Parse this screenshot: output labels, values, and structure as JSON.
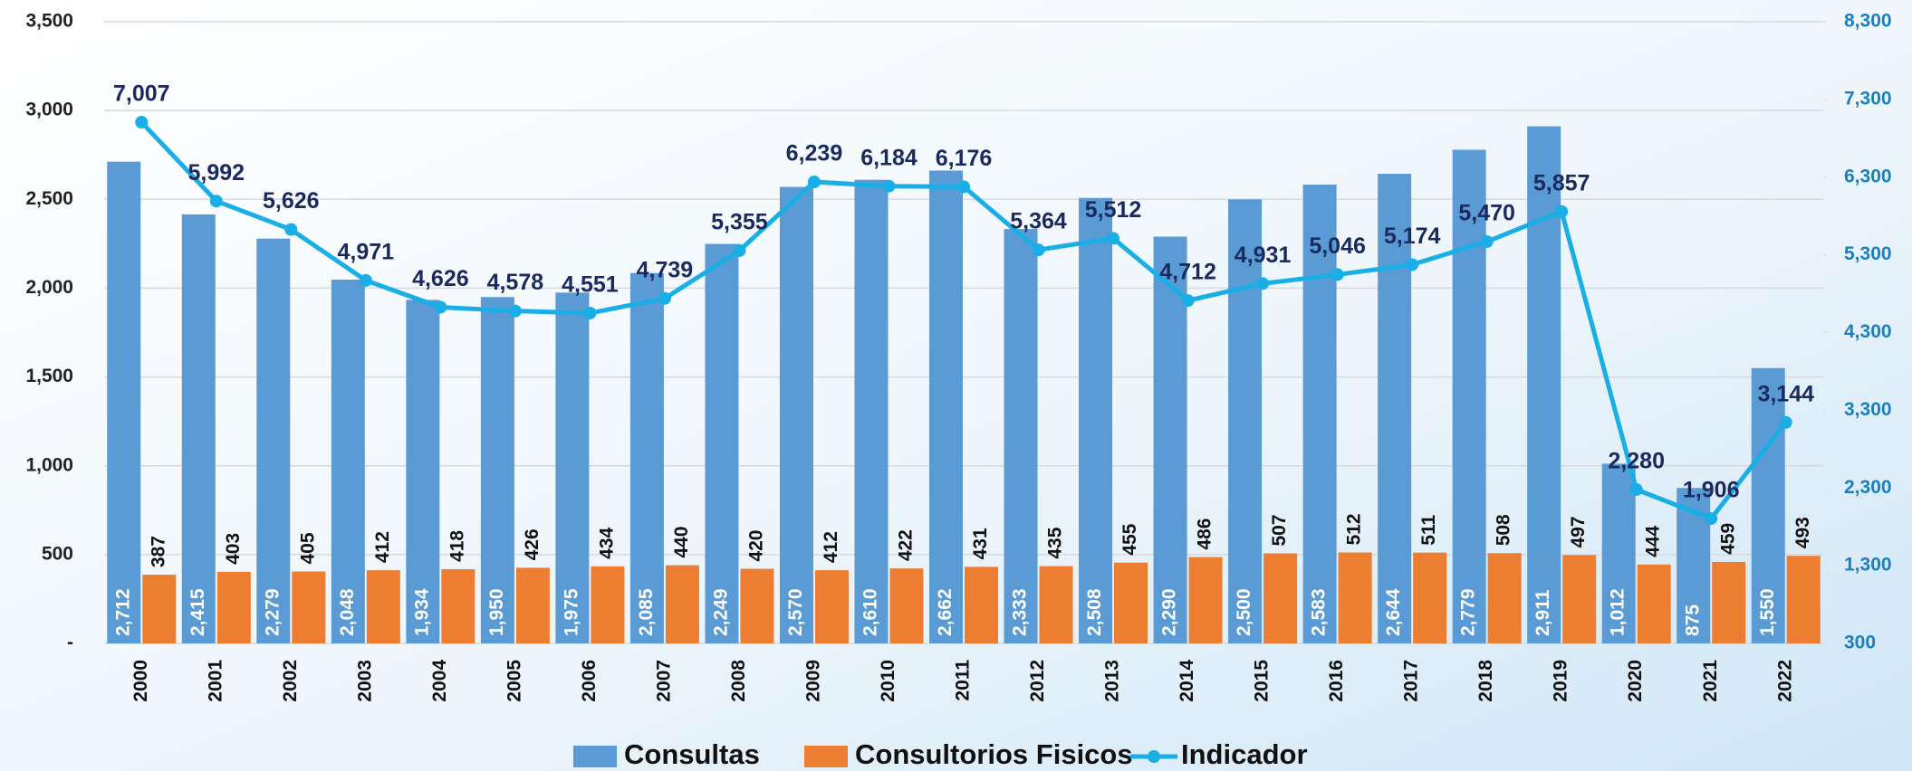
{
  "chart_data": {
    "type": "bar_line",
    "categories": [
      "2000",
      "2001",
      "2002",
      "2003",
      "2004",
      "2005",
      "2006",
      "2007",
      "2008",
      "2009",
      "2010",
      "2011",
      "2012",
      "2013",
      "2014",
      "2015",
      "2016",
      "2017",
      "2018",
      "2019",
      "2020",
      "2021",
      "2022"
    ],
    "series": [
      {
        "name": "Consultas",
        "color": "#5b9bd5",
        "type": "bar",
        "values": [
          2712,
          2415,
          2279,
          2048,
          1934,
          1950,
          1975,
          2085,
          2249,
          2570,
          2610,
          2662,
          2333,
          2508,
          2290,
          2500,
          2583,
          2644,
          2779,
          2911,
          1012,
          875,
          1550
        ],
        "value_labels": [
          "2,712",
          "2,415",
          "2,279",
          "2,048",
          "1,934",
          "1,950",
          "1,975",
          "2,085",
          "2,249",
          "2,570",
          "2,610",
          "2,662",
          "2,333",
          "2,508",
          "2,290",
          "2,500",
          "2,583",
          "2,644",
          "2,779",
          "2,911",
          "1,012",
          "875",
          "1,550"
        ]
      },
      {
        "name": "Consultorios Fisicos",
        "color": "#ed7d31",
        "type": "bar",
        "values": [
          387,
          403,
          405,
          412,
          418,
          426,
          434,
          440,
          420,
          412,
          422,
          431,
          435,
          455,
          486,
          507,
          512,
          511,
          508,
          497,
          444,
          459,
          493
        ]
      },
      {
        "name": "Indicador",
        "color": "#1aaee6",
        "type": "line",
        "axis": "y2",
        "values": [
          7007,
          5992,
          5626,
          4971,
          4626,
          4578,
          4551,
          4739,
          5355,
          6239,
          6184,
          6176,
          5364,
          5512,
          4712,
          4931,
          5046,
          5174,
          5470,
          5857,
          2280,
          1906,
          3144
        ],
        "value_labels": [
          "7,007",
          "5,992",
          "5,626",
          "4,971",
          "4,626",
          "4,578",
          "4,551",
          "4,739",
          "5,355",
          "6,239",
          "6,184",
          "6,176",
          "5,364",
          "5,512",
          "4,712",
          "4,931",
          "5,046",
          "5,174",
          "5,470",
          "5,857",
          "2,280",
          "1,906",
          "3,144"
        ]
      }
    ],
    "ylim": [
      0,
      3500
    ],
    "yticks": [
      {
        "value": 0,
        "label": "-"
      },
      500,
      {
        "value": 1000,
        "label": "1,000"
      },
      {
        "value": 1500,
        "label": "1,500"
      },
      {
        "value": 2000,
        "label": "2,000"
      },
      {
        "value": 2500,
        "label": "2,500"
      },
      {
        "value": 3000,
        "label": "3,000"
      },
      {
        "value": 3500,
        "label": "3,500"
      }
    ],
    "y2lim": [
      300,
      8300
    ],
    "y2ticks": [
      300,
      {
        "value": 1300,
        "label": "1,300"
      },
      {
        "value": 2300,
        "label": "2,300"
      },
      {
        "value": 3300,
        "label": "3,300"
      },
      {
        "value": 4300,
        "label": "4,300"
      },
      {
        "value": 5300,
        "label": "5,300"
      },
      {
        "value": 6300,
        "label": "6,300"
      },
      {
        "value": 7300,
        "label": "7,300"
      },
      {
        "value": 8300,
        "label": "8,300"
      }
    ],
    "grid": true,
    "legend": "bottom"
  }
}
